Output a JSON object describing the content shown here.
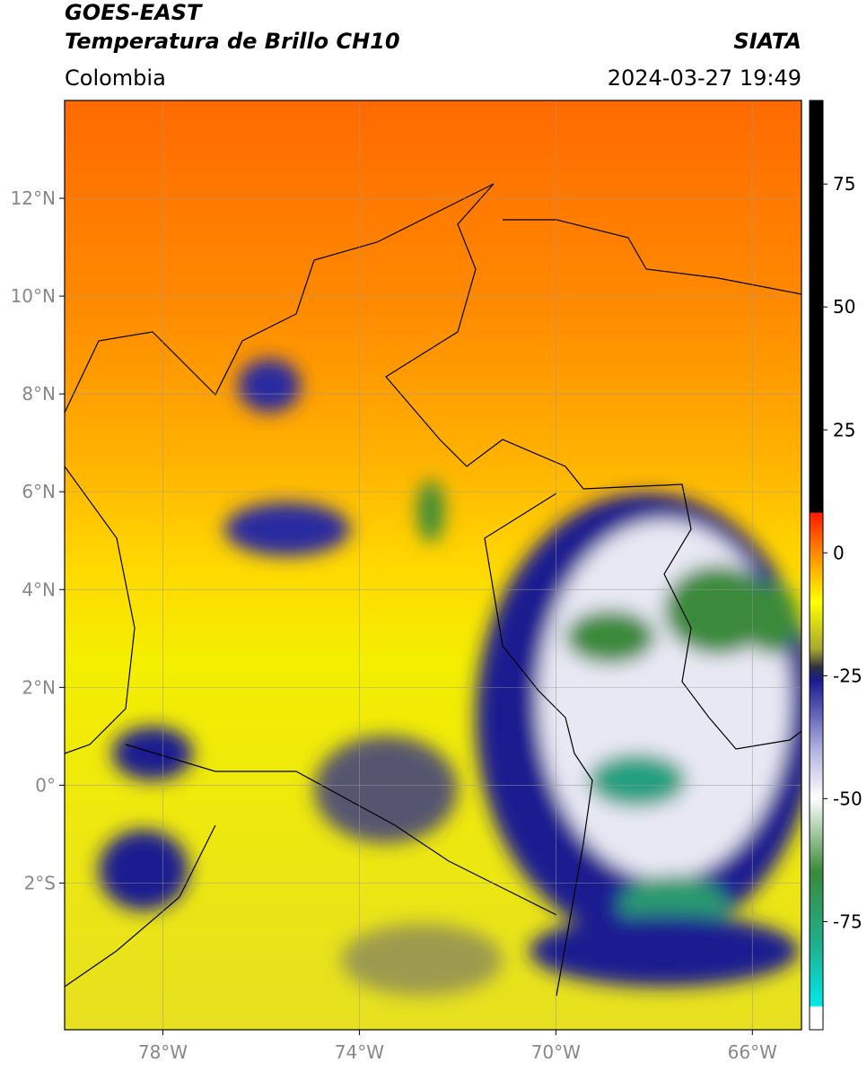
{
  "header": {
    "title": "GOES-EAST",
    "subtitle": "Temperatura de Brillo CH10",
    "source": "SIATA",
    "region": "Colombia",
    "datetime": "2024-03-27 19:49"
  },
  "map": {
    "lonlim": [
      -80,
      -65
    ],
    "latlim": [
      -5,
      14
    ],
    "lon_ticks": [
      {
        "value": -78,
        "label": "78°W"
      },
      {
        "value": -74,
        "label": "74°W"
      },
      {
        "value": -70,
        "label": "70°W"
      },
      {
        "value": -66,
        "label": "66°W"
      }
    ],
    "lat_ticks": [
      {
        "value": 12,
        "label": "12°N"
      },
      {
        "value": 10,
        "label": "10°N"
      },
      {
        "value": 8,
        "label": "8°N"
      },
      {
        "value": 6,
        "label": "6°N"
      },
      {
        "value": 4,
        "label": "4°N"
      },
      {
        "value": 2,
        "label": "2°N"
      },
      {
        "value": 0,
        "label": "0°"
      },
      {
        "value": -2,
        "label": "2°S"
      }
    ],
    "grid": true
  },
  "colorbar": {
    "lim": [
      -97,
      92
    ],
    "ticks": [
      75,
      50,
      25,
      0,
      -25,
      -50,
      -75
    ]
  }
}
